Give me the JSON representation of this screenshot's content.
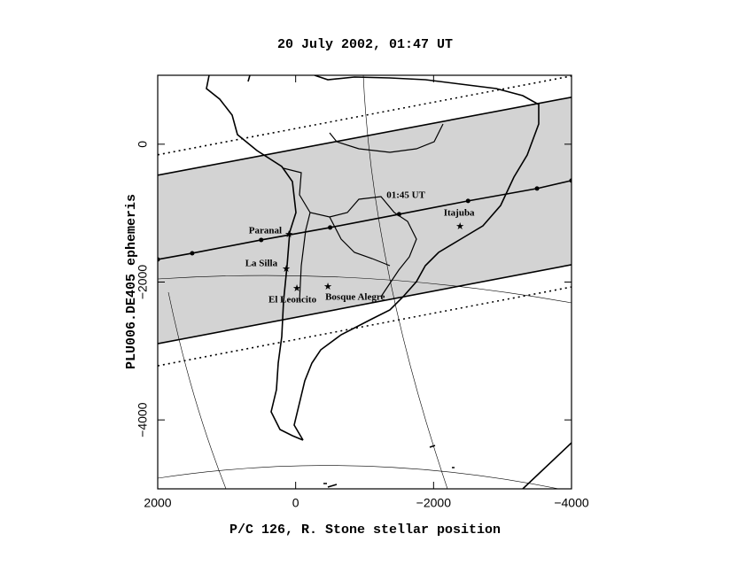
{
  "chart_data": {
    "type": "map-track",
    "title": "20 July 2002, 01:47 UT",
    "xlabel": "P/C 126, R. Stone stellar position",
    "ylabel": "PLU006.DE405 ephemeris",
    "xlim": [
      2000,
      -4000
    ],
    "ylim": [
      -5000,
      1000
    ],
    "xticks": [
      2000,
      0,
      {
        "value": -2000,
        "label": "−2000"
      },
      {
        "value": -4000,
        "label": "−4000"
      }
    ],
    "yticks": [
      0,
      {
        "value": -2000,
        "label": "−2000"
      },
      {
        "value": -4000,
        "label": "−4000"
      }
    ],
    "band": {
      "x": [
        2000,
        -4000
      ],
      "upper": [
        -450,
        682
      ],
      "lower": [
        -2894,
        -1749
      ],
      "color": "#d3d3d3"
    },
    "series": [
      {
        "x": [
          2000,
          1500,
          500,
          -500,
          -1500,
          -2500,
          -3500,
          -4000
        ],
        "values": [
          -1672,
          -1582,
          -1389,
          -1209,
          -1016,
          -823,
          -643,
          -527
        ],
        "style": "solid",
        "markers": true,
        "color": "#000000"
      },
      {
        "x": [
          2000,
          -4000
        ],
        "values": [
          -450,
          682
        ],
        "style": "solid",
        "markers": false,
        "color": "#000000"
      },
      {
        "x": [
          2000,
          -4000
        ],
        "values": [
          -2894,
          -1749
        ],
        "style": "solid",
        "markers": false,
        "color": "#000000"
      },
      {
        "x": [
          2000,
          -4000
        ],
        "values": [
          -154,
          990
        ],
        "style": "dotted",
        "markers": false,
        "color": "#000000"
      },
      {
        "x": [
          2000,
          -4000
        ],
        "values": [
          -3215,
          -2071
        ],
        "style": "dotted",
        "markers": false,
        "color": "#000000"
      }
    ],
    "sites": [
      {
        "label": "Paranal",
        "x": 98,
        "y": -1300
      },
      {
        "label": "La Silla",
        "x": 136,
        "y": -1800
      },
      {
        "label": "El Leoncito",
        "x": -18,
        "y": -2084
      },
      {
        "label": "Bosque Alegre",
        "x": -468,
        "y": -2058
      },
      {
        "label": "Itajuba",
        "x": -2383,
        "y": -1183
      }
    ],
    "annotations": [
      {
        "text": "01:45 UT",
        "x": -1599,
        "y": -746
      }
    ]
  }
}
